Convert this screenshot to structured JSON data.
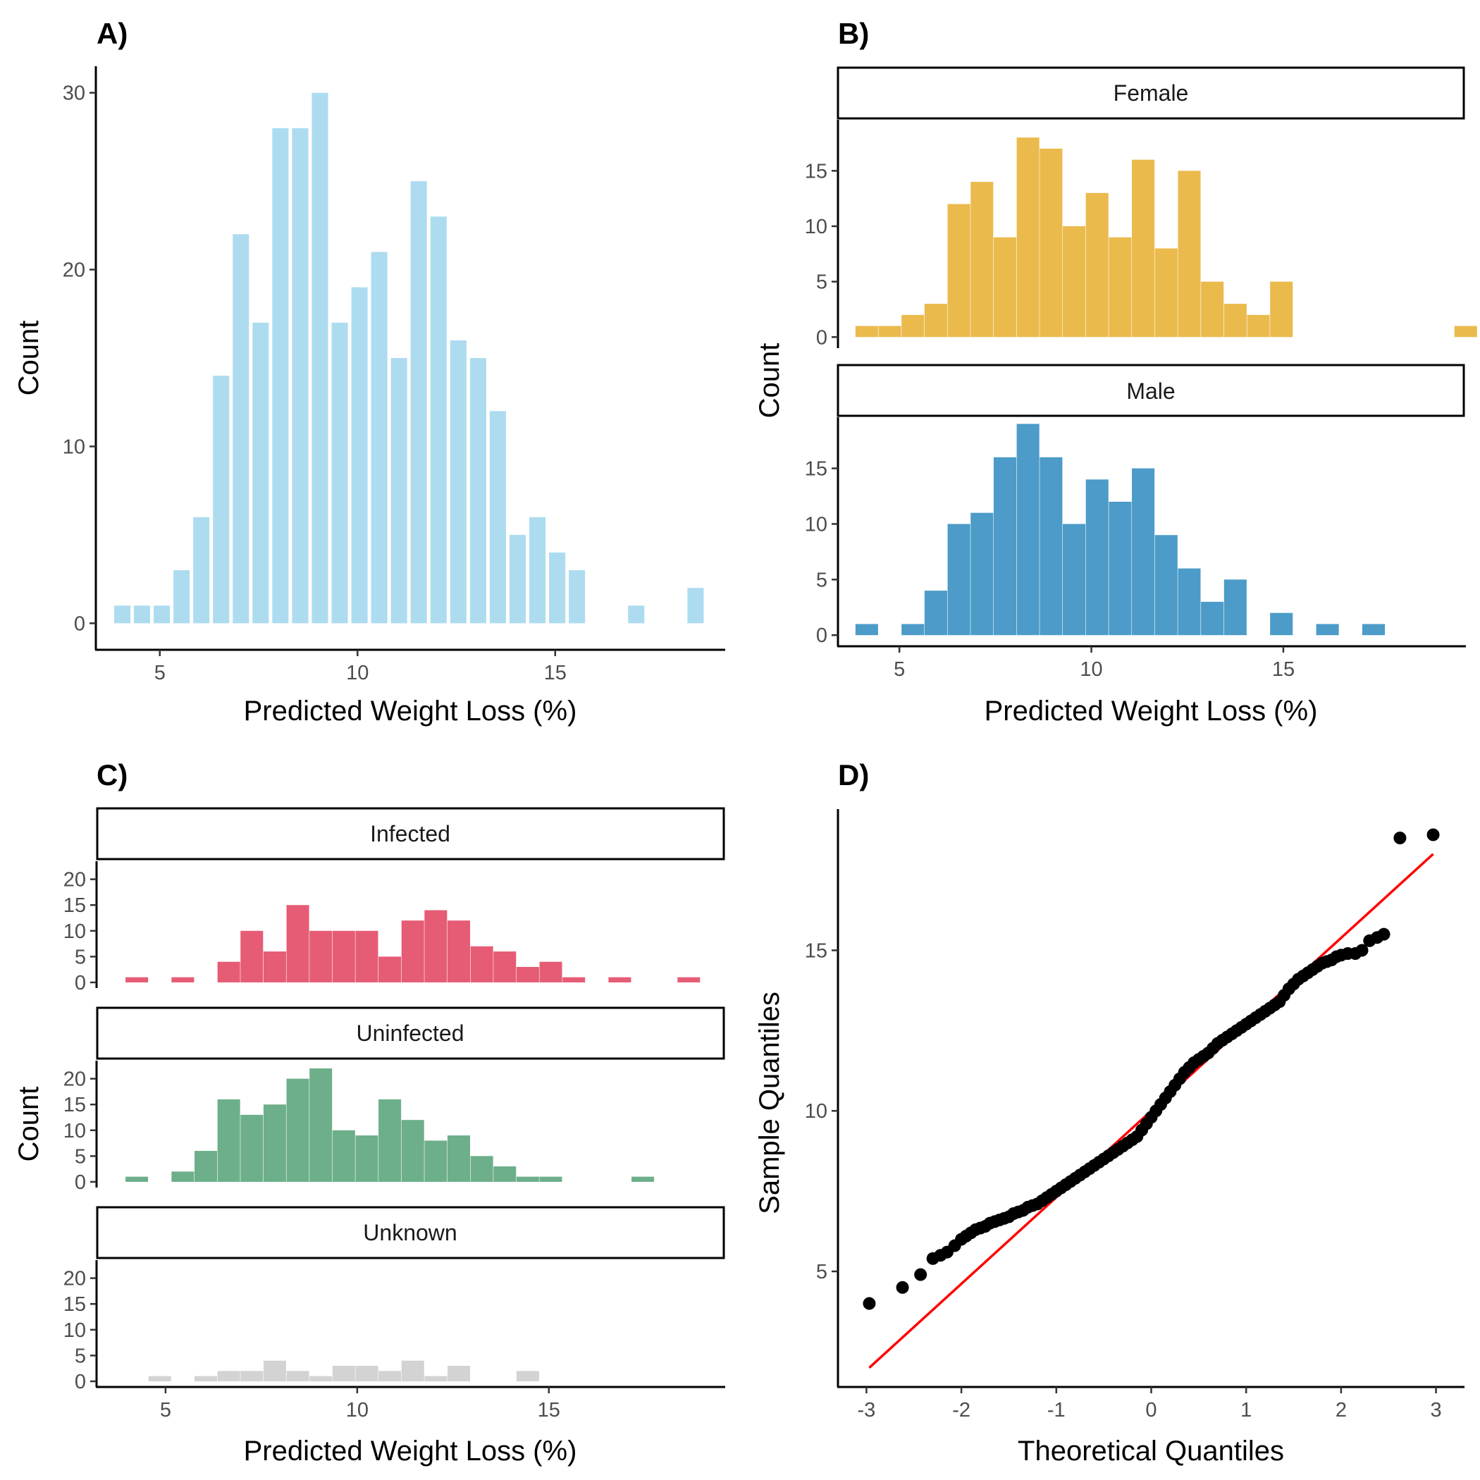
{
  "chart_data": [
    {
      "panel": "A)",
      "type": "bar",
      "xlabel": "Predicted Weight Loss (%)",
      "ylabel": "Count",
      "xlim": [
        3.4,
        19.3
      ],
      "ylim": [
        -1.5,
        31.5
      ],
      "xticks": [
        5,
        10,
        15
      ],
      "yticks": [
        0,
        10,
        20,
        30
      ],
      "color": "#ADDCF0",
      "bins": {
        "start": 3.8,
        "width": 0.5,
        "counts": [
          1,
          1,
          1,
          3,
          6,
          14,
          22,
          17,
          28,
          28,
          30,
          17,
          19,
          21,
          15,
          25,
          23,
          16,
          15,
          12,
          5,
          6,
          4,
          3,
          0,
          0,
          1,
          0,
          0,
          2
        ]
      }
    },
    {
      "panel": "B)",
      "type": "bar",
      "xlabel": "Predicted Weight Loss (%)",
      "ylabel": "Count",
      "xlim": [
        3.4,
        19.7
      ],
      "ylim": [
        -1,
        19.6
      ],
      "xticks": [
        5,
        10,
        15
      ],
      "yticks": [
        0,
        5,
        10,
        15
      ],
      "facets": [
        {
          "label": "Female",
          "color": "#EBBA4D",
          "bins": {
            "start": 3.85,
            "width": 0.6,
            "counts": [
              1,
              1,
              2,
              3,
              12,
              14,
              9,
              18,
              17,
              10,
              13,
              9,
              16,
              8,
              15,
              5,
              3,
              2,
              5,
              0,
              0,
              0,
              0,
              0,
              0,
              0,
              1
            ]
          }
        },
        {
          "label": "Male",
          "color": "#4C9BC8",
          "bins": {
            "start": 3.85,
            "width": 0.6,
            "counts": [
              1,
              0,
              1,
              4,
              10,
              11,
              16,
              19,
              16,
              10,
              14,
              12,
              15,
              9,
              6,
              3,
              5,
              0,
              2,
              0,
              1,
              0,
              1
            ]
          }
        }
      ]
    },
    {
      "panel": "C)",
      "type": "bar",
      "xlabel": "Predicted Weight Loss (%)",
      "ylabel": "Count",
      "xlim": [
        3.2,
        19.6
      ],
      "ylim": [
        -1.1,
        23.5
      ],
      "xticks": [
        5,
        10,
        15
      ],
      "yticks": [
        0,
        5,
        10,
        15,
        20
      ],
      "facets": [
        {
          "label": "Infected",
          "color": "#E65C75",
          "bins": {
            "start": 3.95,
            "width": 0.6,
            "counts": [
              1,
              0,
              1,
              0,
              4,
              10,
              6,
              15,
              10,
              10,
              10,
              5,
              12,
              14,
              12,
              7,
              6,
              3,
              4,
              1,
              0,
              1,
              0,
              0,
              1
            ]
          }
        },
        {
          "label": "Uninfected",
          "color": "#6DAF8A",
          "bins": {
            "start": 3.95,
            "width": 0.6,
            "counts": [
              1,
              0,
              2,
              6,
              16,
              13,
              15,
              20,
              22,
              10,
              9,
              16,
              12,
              8,
              9,
              5,
              3,
              1,
              1,
              0,
              0,
              0,
              1
            ]
          }
        },
        {
          "label": "Unknown",
          "color": "#D3D3D3",
          "bins": {
            "start": 4.55,
            "width": 0.6,
            "counts": [
              1,
              0,
              1,
              2,
              2,
              4,
              2,
              1,
              3,
              3,
              2,
              4,
              1,
              3,
              0,
              0,
              2
            ]
          }
        }
      ]
    },
    {
      "panel": "D)",
      "type": "scatter",
      "xlabel": "Theoretical Quantiles",
      "ylabel": "Sample Quantiles",
      "xlim": [
        -3.3,
        3.3
      ],
      "ylim": [
        1.4,
        19.4
      ],
      "xticks": [
        -3,
        -2,
        -1,
        0,
        1,
        2,
        3
      ],
      "yticks": [
        5,
        10,
        15
      ],
      "point_color": "#000000",
      "line_color": "#FF0000",
      "reference_line": {
        "x": [
          -2.97,
          2.97
        ],
        "y": [
          2.0,
          18.0
        ]
      },
      "points": {
        "x": [
          -2.97,
          -2.62,
          -2.43,
          -2.3,
          -2.22,
          -2.15,
          -2.07,
          -2.0,
          -1.95,
          -1.9,
          -1.85,
          -1.8,
          -1.75,
          -1.7,
          -1.65,
          -1.6,
          -1.55,
          -1.5,
          -1.45,
          -1.4,
          -1.35,
          -1.3,
          -1.25,
          -1.2,
          -1.15,
          -1.1,
          -1.05,
          -1.0,
          -0.95,
          -0.9,
          -0.85,
          -0.8,
          -0.75,
          -0.7,
          -0.65,
          -0.6,
          -0.55,
          -0.5,
          -0.45,
          -0.4,
          -0.35,
          -0.3,
          -0.25,
          -0.2,
          -0.15,
          -0.1,
          -0.05,
          0.0,
          0.05,
          0.1,
          0.15,
          0.2,
          0.25,
          0.3,
          0.35,
          0.4,
          0.45,
          0.5,
          0.55,
          0.6,
          0.65,
          0.7,
          0.75,
          0.8,
          0.85,
          0.9,
          0.95,
          1.0,
          1.05,
          1.1,
          1.15,
          1.2,
          1.25,
          1.3,
          1.35,
          1.4,
          1.45,
          1.5,
          1.55,
          1.6,
          1.65,
          1.7,
          1.75,
          1.8,
          1.85,
          1.9,
          1.95,
          2.0,
          2.07,
          2.15,
          2.22,
          2.3,
          2.38,
          2.45,
          2.62,
          2.97
        ],
        "y": [
          4.0,
          4.5,
          4.9,
          5.4,
          5.5,
          5.6,
          5.8,
          6.0,
          6.1,
          6.2,
          6.3,
          6.35,
          6.4,
          6.5,
          6.55,
          6.6,
          6.65,
          6.7,
          6.8,
          6.85,
          6.9,
          7.0,
          7.05,
          7.1,
          7.2,
          7.3,
          7.4,
          7.5,
          7.6,
          7.7,
          7.8,
          7.9,
          8.0,
          8.1,
          8.2,
          8.3,
          8.4,
          8.5,
          8.6,
          8.7,
          8.8,
          8.9,
          9.0,
          9.1,
          9.2,
          9.4,
          9.6,
          9.8,
          10.0,
          10.2,
          10.4,
          10.6,
          10.8,
          11.0,
          11.2,
          11.35,
          11.5,
          11.6,
          11.7,
          11.8,
          11.95,
          12.1,
          12.2,
          12.3,
          12.4,
          12.5,
          12.6,
          12.7,
          12.8,
          12.9,
          13.0,
          13.1,
          13.2,
          13.3,
          13.4,
          13.6,
          13.8,
          13.95,
          14.1,
          14.2,
          14.3,
          14.4,
          14.5,
          14.6,
          14.65,
          14.7,
          14.8,
          14.85,
          14.9,
          14.9,
          15.0,
          15.3,
          15.4,
          15.5,
          18.5,
          18.6
        ]
      }
    }
  ]
}
